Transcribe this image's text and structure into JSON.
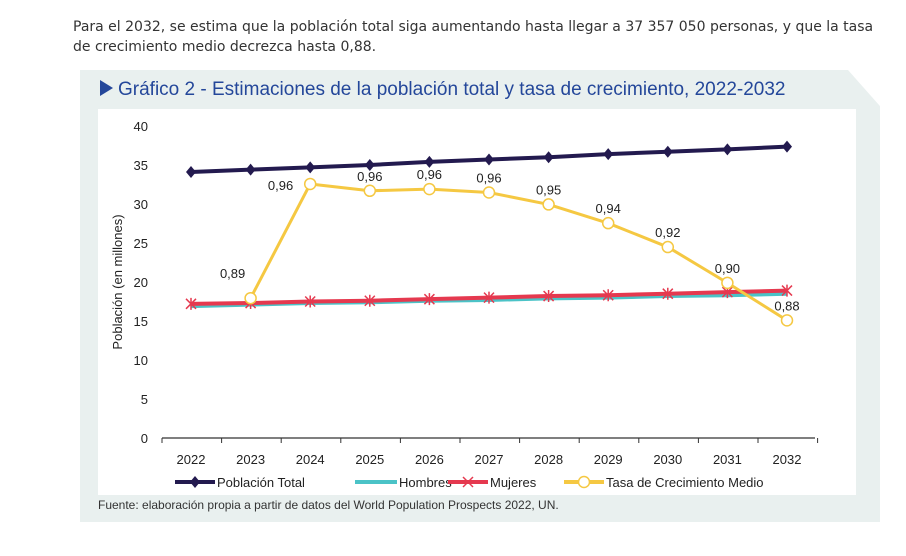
{
  "intro_text": "Para el 2032, se estima que la población total siga aumentando hasta llegar a 37 357 050 personas, y que la tasa de crecimiento medio decrezca hasta 0,88.",
  "source": "Fuente: elaboración propia a partir de datos del World Population Prospects 2022, UN.",
  "chart_data": {
    "type": "line",
    "title": "Gráfico 2 - Estimaciones de la población total y tasa de crecimiento, 2022-2032",
    "ylabel": "Población (en millones)",
    "xlabel": "",
    "ylim": [
      0,
      40
    ],
    "yticks": [
      "0",
      "5",
      "10",
      "15",
      "20",
      "25",
      "30",
      "35",
      "40"
    ],
    "secondary_ylim_hidden": [
      0.811,
      0.994
    ],
    "grid": false,
    "legend_position": "bottom",
    "categories": [
      "2022",
      "2023",
      "2024",
      "2025",
      "2026",
      "2027",
      "2028",
      "2029",
      "2030",
      "2031",
      "2032"
    ],
    "series": [
      {
        "name": "Población Total",
        "color": "#231a4f",
        "marker": "diamond",
        "axis": "primary",
        "values": [
          34.1,
          34.4,
          34.7,
          35.0,
          35.4,
          35.7,
          36.0,
          36.4,
          36.7,
          37.0,
          37.36
        ]
      },
      {
        "name": "Hombres",
        "color": "#4bc3c7",
        "marker": "none",
        "axis": "primary",
        "values": [
          16.9,
          17.1,
          17.3,
          17.4,
          17.6,
          17.7,
          17.9,
          18.0,
          18.2,
          18.3,
          18.5
        ]
      },
      {
        "name": "Mujeres",
        "color": "#e5394f",
        "marker": "asterisk",
        "axis": "primary",
        "values": [
          17.2,
          17.3,
          17.5,
          17.6,
          17.8,
          18.0,
          18.2,
          18.3,
          18.5,
          18.7,
          18.9
        ]
      },
      {
        "name": "Tasa de Crecimiento Medio",
        "color": "#f5c842",
        "marker": "circle",
        "axis": "secondary",
        "values": [
          null,
          0.893,
          0.96,
          0.956,
          0.957,
          0.955,
          0.948,
          0.937,
          0.923,
          0.902,
          0.88
        ],
        "labels": [
          null,
          "0,89",
          "0,96",
          "0,96",
          "0,96",
          "0,96",
          "0,95",
          "0,94",
          "0,92",
          "0,90",
          "0,88"
        ]
      }
    ]
  }
}
